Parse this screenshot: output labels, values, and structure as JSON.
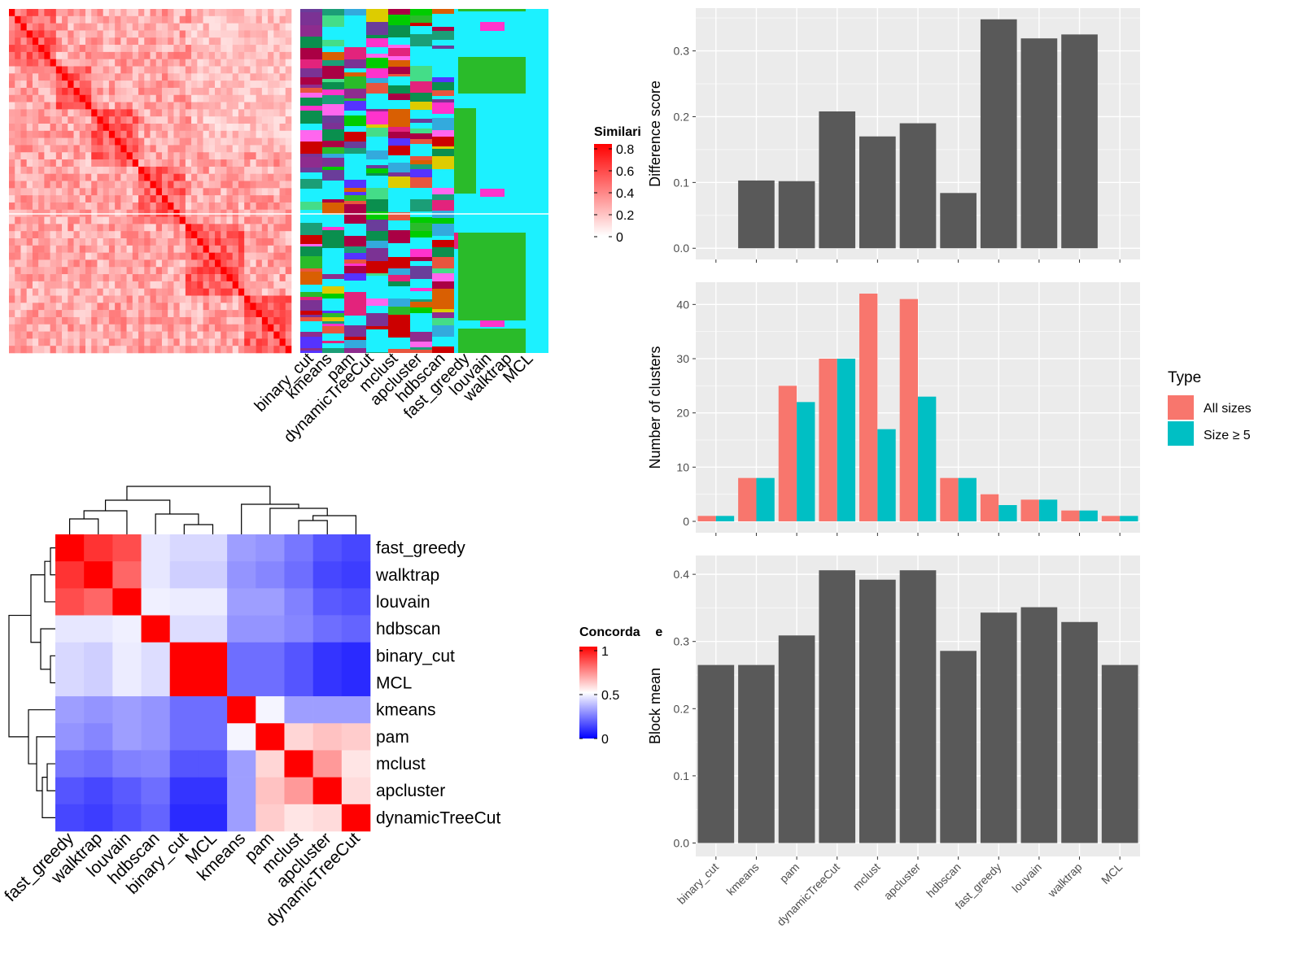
{
  "methods_order": [
    "binary_cut",
    "kmeans",
    "pam",
    "dynamicTreeCut",
    "mclust",
    "apcluster",
    "hdbscan",
    "fast_greedy",
    "louvain",
    "walktrap",
    "MCL"
  ],
  "legends": {
    "similarity": {
      "title": "Similarity",
      "ticks": [
        "0.8",
        "0.6",
        "0.4",
        "0.2",
        "0"
      ],
      "colors": [
        "#FF0000",
        "#FFFFFF"
      ]
    },
    "concordance": {
      "title": "Concordance",
      "ticks": [
        "1",
        "0.5",
        "0"
      ],
      "colors": [
        "#FF0000",
        "#FFFFFF",
        "#0000FF"
      ]
    },
    "type": {
      "title": "Type",
      "items": [
        {
          "label": "All sizes",
          "color": "#F8766D"
        },
        {
          "label": "Size ≥ 5",
          "color": "#00BFC4"
        }
      ]
    }
  },
  "chart_data": [
    {
      "type": "heatmap",
      "name": "similarity_matrix",
      "title": "",
      "legend_title": "Similarity",
      "range": [
        0,
        0.8
      ],
      "annotation_columns": [
        "binary_cut",
        "kmeans",
        "pam",
        "dynamicTreeCut",
        "mclust",
        "apcluster",
        "hdbscan",
        "fast_greedy",
        "louvain",
        "walktrap",
        "MCL"
      ]
    },
    {
      "type": "heatmap",
      "name": "concordance_matrix",
      "title": "",
      "legend_title": "Concordance",
      "range": [
        0,
        1
      ],
      "rows": [
        "fast_greedy",
        "walktrap",
        "louvain",
        "hdbscan",
        "binary_cut",
        "MCL",
        "kmeans",
        "pam",
        "mclust",
        "apcluster",
        "dynamicTreeCut"
      ],
      "cols": [
        "fast_greedy",
        "walktrap",
        "louvain",
        "hdbscan",
        "binary_cut",
        "MCL",
        "kmeans",
        "pam",
        "mclust",
        "apcluster",
        "dynamicTreeCut"
      ],
      "values": [
        [
          1.0,
          0.9,
          0.85,
          0.45,
          0.42,
          0.42,
          0.3,
          0.28,
          0.22,
          0.15,
          0.12
        ],
        [
          0.9,
          1.0,
          0.8,
          0.45,
          0.4,
          0.4,
          0.28,
          0.25,
          0.2,
          0.12,
          0.1
        ],
        [
          0.85,
          0.8,
          1.0,
          0.47,
          0.46,
          0.46,
          0.3,
          0.3,
          0.24,
          0.16,
          0.14
        ],
        [
          0.45,
          0.45,
          0.47,
          1.0,
          0.43,
          0.43,
          0.28,
          0.28,
          0.25,
          0.2,
          0.18
        ],
        [
          0.42,
          0.4,
          0.46,
          0.43,
          1.0,
          1.0,
          0.2,
          0.2,
          0.15,
          0.08,
          0.06
        ],
        [
          0.42,
          0.4,
          0.46,
          0.43,
          1.0,
          1.0,
          0.2,
          0.2,
          0.15,
          0.08,
          0.06
        ],
        [
          0.3,
          0.28,
          0.3,
          0.28,
          0.2,
          0.2,
          1.0,
          0.48,
          0.3,
          0.3,
          0.3
        ],
        [
          0.28,
          0.25,
          0.3,
          0.28,
          0.2,
          0.2,
          0.48,
          1.0,
          0.58,
          0.62,
          0.6
        ],
        [
          0.22,
          0.2,
          0.24,
          0.25,
          0.15,
          0.15,
          0.3,
          0.58,
          1.0,
          0.7,
          0.55
        ],
        [
          0.15,
          0.12,
          0.16,
          0.2,
          0.08,
          0.08,
          0.3,
          0.62,
          0.7,
          1.0,
          0.57
        ],
        [
          0.12,
          0.1,
          0.14,
          0.18,
          0.06,
          0.06,
          0.3,
          0.6,
          0.55,
          0.57,
          1.0
        ]
      ]
    },
    {
      "type": "bar",
      "name": "difference_score",
      "title": "",
      "xlabel": "",
      "ylabel": "Difference score",
      "categories": [
        "binary_cut",
        "kmeans",
        "pam",
        "dynamicTreeCut",
        "mclust",
        "apcluster",
        "hdbscan",
        "fast_greedy",
        "louvain",
        "walktrap",
        "MCL"
      ],
      "values": [
        null,
        0.103,
        0.102,
        0.208,
        0.17,
        0.19,
        0.084,
        0.348,
        0.319,
        0.325,
        null
      ],
      "ylim": [
        -0.017,
        0.365
      ],
      "yticks": [
        "0.0",
        "0.1",
        "0.2",
        "0.3"
      ],
      "grid": true
    },
    {
      "type": "bar",
      "name": "number_of_clusters",
      "title": "",
      "xlabel": "",
      "ylabel": "Number of clusters",
      "categories": [
        "binary_cut",
        "kmeans",
        "pam",
        "dynamicTreeCut",
        "mclust",
        "apcluster",
        "hdbscan",
        "fast_greedy",
        "louvain",
        "walktrap",
        "MCL"
      ],
      "series": [
        {
          "name": "All sizes",
          "color": "#F8766D",
          "values": [
            1,
            8,
            25,
            30,
            42,
            41,
            8,
            5,
            4,
            2,
            1
          ]
        },
        {
          "name": "Size ≥ 5",
          "color": "#00BFC4",
          "values": [
            1,
            8,
            22,
            30,
            17,
            23,
            8,
            3,
            4,
            2,
            1
          ]
        }
      ],
      "ylim": [
        -2.1,
        44.1
      ],
      "yticks": [
        "0",
        "10",
        "20",
        "30",
        "40"
      ],
      "legend": "right",
      "grid": true
    },
    {
      "type": "bar",
      "name": "block_mean",
      "title": "",
      "xlabel": "",
      "ylabel": "Block mean",
      "categories": [
        "binary_cut",
        "kmeans",
        "pam",
        "dynamicTreeCut",
        "mclust",
        "apcluster",
        "hdbscan",
        "fast_greedy",
        "louvain",
        "walktrap",
        "MCL"
      ],
      "values": [
        0.265,
        0.265,
        0.309,
        0.406,
        0.392,
        0.406,
        0.286,
        0.343,
        0.351,
        0.329,
        0.265
      ],
      "ylim": [
        -0.02,
        0.428
      ],
      "yticks": [
        "0.0",
        "0.1",
        "0.2",
        "0.3",
        "0.4"
      ],
      "grid": true
    }
  ]
}
